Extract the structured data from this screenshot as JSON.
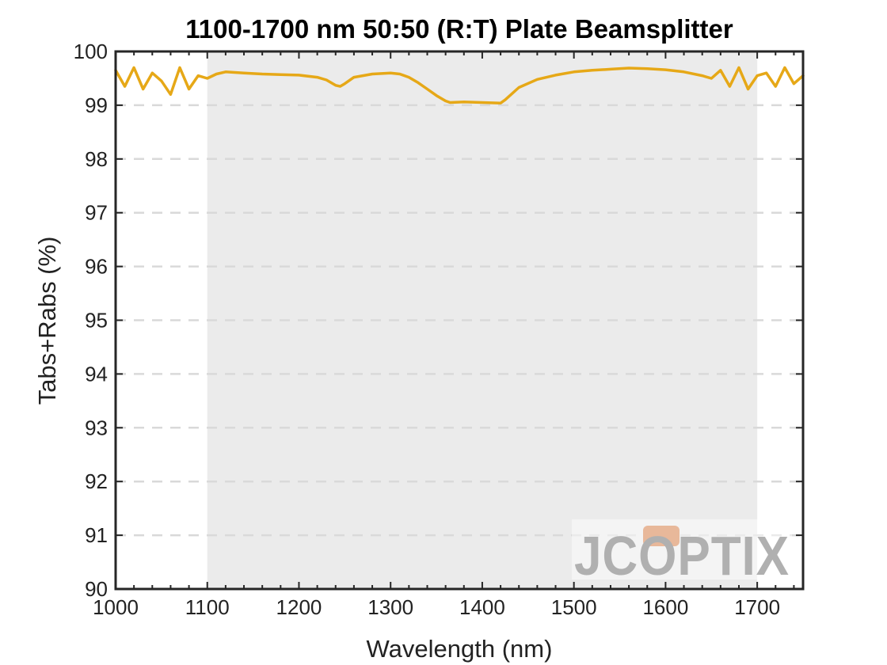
{
  "chart_data": {
    "type": "line",
    "title": "1100-1700 nm 50:50 (R:T) Plate Beamsplitter",
    "xlabel": "Wavelength (nm)",
    "ylabel": "Tabs+Rabs (%)",
    "xlim": [
      1000,
      1750
    ],
    "ylim": [
      90,
      100
    ],
    "x_ticks": [
      1000,
      1100,
      1200,
      1300,
      1400,
      1500,
      1600,
      1700
    ],
    "y_ticks": [
      90,
      91,
      92,
      93,
      94,
      95,
      96,
      97,
      98,
      99,
      100
    ],
    "grid": "horizontal dashed",
    "shaded_band": [
      1100,
      1700
    ],
    "band_color": "#ebebeb",
    "line_color": "#e6a817",
    "series": [
      {
        "x": [
          1000,
          1010,
          1020,
          1030,
          1040,
          1050,
          1060,
          1070,
          1080,
          1090,
          1100,
          1110,
          1120,
          1140,
          1160,
          1180,
          1200,
          1220,
          1230,
          1240,
          1245,
          1250,
          1260,
          1280,
          1300,
          1310,
          1320,
          1330,
          1340,
          1350,
          1360,
          1365,
          1380,
          1400,
          1420,
          1425,
          1440,
          1460,
          1480,
          1500,
          1520,
          1540,
          1560,
          1580,
          1600,
          1620,
          1640,
          1650,
          1660,
          1670,
          1680,
          1690,
          1700,
          1710,
          1720,
          1730,
          1740,
          1750
        ],
        "y": [
          99.65,
          99.35,
          99.7,
          99.3,
          99.6,
          99.45,
          99.2,
          99.7,
          99.3,
          99.55,
          99.5,
          99.58,
          99.62,
          99.6,
          99.58,
          99.57,
          99.56,
          99.52,
          99.47,
          99.37,
          99.35,
          99.4,
          99.52,
          99.58,
          99.6,
          99.58,
          99.52,
          99.42,
          99.3,
          99.18,
          99.08,
          99.05,
          99.06,
          99.05,
          99.04,
          99.1,
          99.33,
          99.48,
          99.56,
          99.62,
          99.65,
          99.67,
          99.69,
          99.68,
          99.66,
          99.62,
          99.55,
          99.5,
          99.65,
          99.35,
          99.7,
          99.3,
          99.55,
          99.6,
          99.35,
          99.7,
          99.4,
          99.55
        ]
      }
    ]
  },
  "watermark": {
    "text": "JCOPTIX",
    "text_color": "#b0b0b0",
    "accent_color": "#e8b89a"
  }
}
